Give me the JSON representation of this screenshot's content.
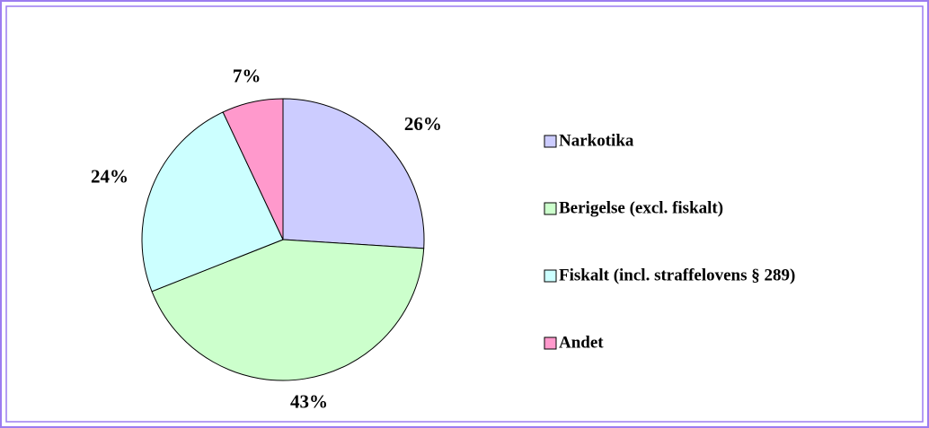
{
  "chart_data": {
    "type": "pie",
    "categories": [
      "Narkotika",
      "Berigelse (excl. fiskalt)",
      "Fiskalt (incl. straffelovens § 289)",
      "Andet"
    ],
    "values": [
      26,
      43,
      24,
      7
    ],
    "value_labels": [
      "26%",
      "43%",
      "24%",
      "7%"
    ],
    "colors": [
      "#ccccff",
      "#ccffcc",
      "#ccffff",
      "#ff99cc"
    ],
    "legend": "right"
  }
}
